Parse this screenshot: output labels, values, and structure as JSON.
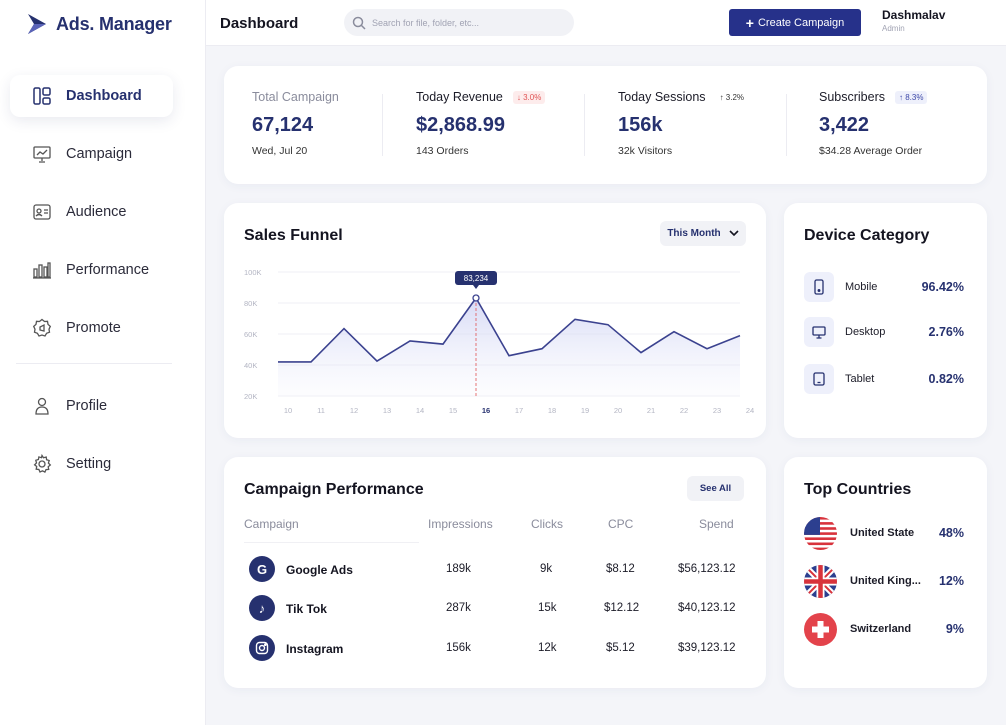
{
  "app": {
    "logo_text": "Ads. Manager"
  },
  "sidebar": {
    "items": [
      {
        "label": "Dashboard",
        "icon": "dashboard-icon",
        "active": true
      },
      {
        "label": "Campaign",
        "icon": "presentation-icon"
      },
      {
        "label": "Audience",
        "icon": "id-card-icon"
      },
      {
        "label": "Performance",
        "icon": "bar-chart-icon"
      },
      {
        "label": "Promote",
        "icon": "badge-icon"
      },
      {
        "label": "Profile",
        "icon": "user-icon"
      },
      {
        "label": "Setting",
        "icon": "gear-icon"
      }
    ]
  },
  "header": {
    "title": "Dashboard",
    "search_placeholder": "Search for file, folder, etc...",
    "create_button": "Create Campaign",
    "user_name": "Dashmalav",
    "user_role": "Admin"
  },
  "stats": [
    {
      "title": "Total Campaign",
      "value": "67,124",
      "sub": "Wed, Jul 20",
      "badge": ""
    },
    {
      "title": "Today Revenue",
      "value": "$2,868.99",
      "sub": "143 Orders",
      "badge": "↓ 3.0%"
    },
    {
      "title": "Today Sessions",
      "value": "156k",
      "sub": "32k Visitors",
      "badge": "↑ 3.2%"
    },
    {
      "title": "Subscribers",
      "value": "3,422",
      "sub": "$34.28 Average Order",
      "badge": "↑ 8.3%"
    }
  ],
  "funnel": {
    "title": "Sales Funnel",
    "period": "This Month",
    "tooltip": "83,234"
  },
  "chart_data": {
    "type": "area",
    "title": "Sales Funnel",
    "x": [
      10,
      11,
      12,
      13,
      14,
      15,
      16,
      17,
      18,
      19,
      20,
      21,
      22,
      23,
      24
    ],
    "y_ticks": [
      "100K",
      "80K",
      "60K",
      "40K",
      "20K"
    ],
    "values": [
      42000,
      42000,
      63500,
      42500,
      55500,
      53500,
      83234,
      46000,
      50500,
      69500,
      66000,
      48000,
      61500,
      50500,
      59000
    ],
    "ylim": [
      20000,
      100000
    ],
    "highlight_x": 16
  },
  "device": {
    "title": "Device Category",
    "items": [
      {
        "name": "Mobile",
        "value": "96.42%",
        "icon": "mobile-icon"
      },
      {
        "name": "Desktop",
        "value": "2.76%",
        "icon": "desktop-icon"
      },
      {
        "name": "Tablet",
        "value": "0.82%",
        "icon": "tablet-icon"
      }
    ]
  },
  "campaign": {
    "title": "Campaign Performance",
    "see_all": "See All",
    "columns": [
      "Campaign",
      "Impressions",
      "Clicks",
      "CPC",
      "Spend"
    ],
    "rows": [
      {
        "name": "Google Ads",
        "impressions": "189k",
        "clicks": "9k",
        "cpc": "$8.12",
        "spend": "$56,123.12",
        "icon_glyph": "G"
      },
      {
        "name": "Tik Tok",
        "impressions": "287k",
        "clicks": "15k",
        "cpc": "$12.12",
        "spend": "$40,123.12",
        "icon_glyph": "♪"
      },
      {
        "name": "Instagram",
        "impressions": "156k",
        "clicks": "12k",
        "cpc": "$5.12",
        "spend": "$39,123.12",
        "icon_glyph": ""
      }
    ]
  },
  "countries": {
    "title": "Top Countries",
    "items": [
      {
        "name": "United State",
        "value": "48%",
        "icon": "us-flag-icon"
      },
      {
        "name": "United King...",
        "value": "12%",
        "icon": "uk-flag-icon"
      },
      {
        "name": "Switzerland",
        "value": "9%",
        "icon": "swiss-flag-icon"
      }
    ]
  },
  "colors": {
    "accent": "#26316f",
    "button": "#26318a",
    "down": "#e05454"
  }
}
